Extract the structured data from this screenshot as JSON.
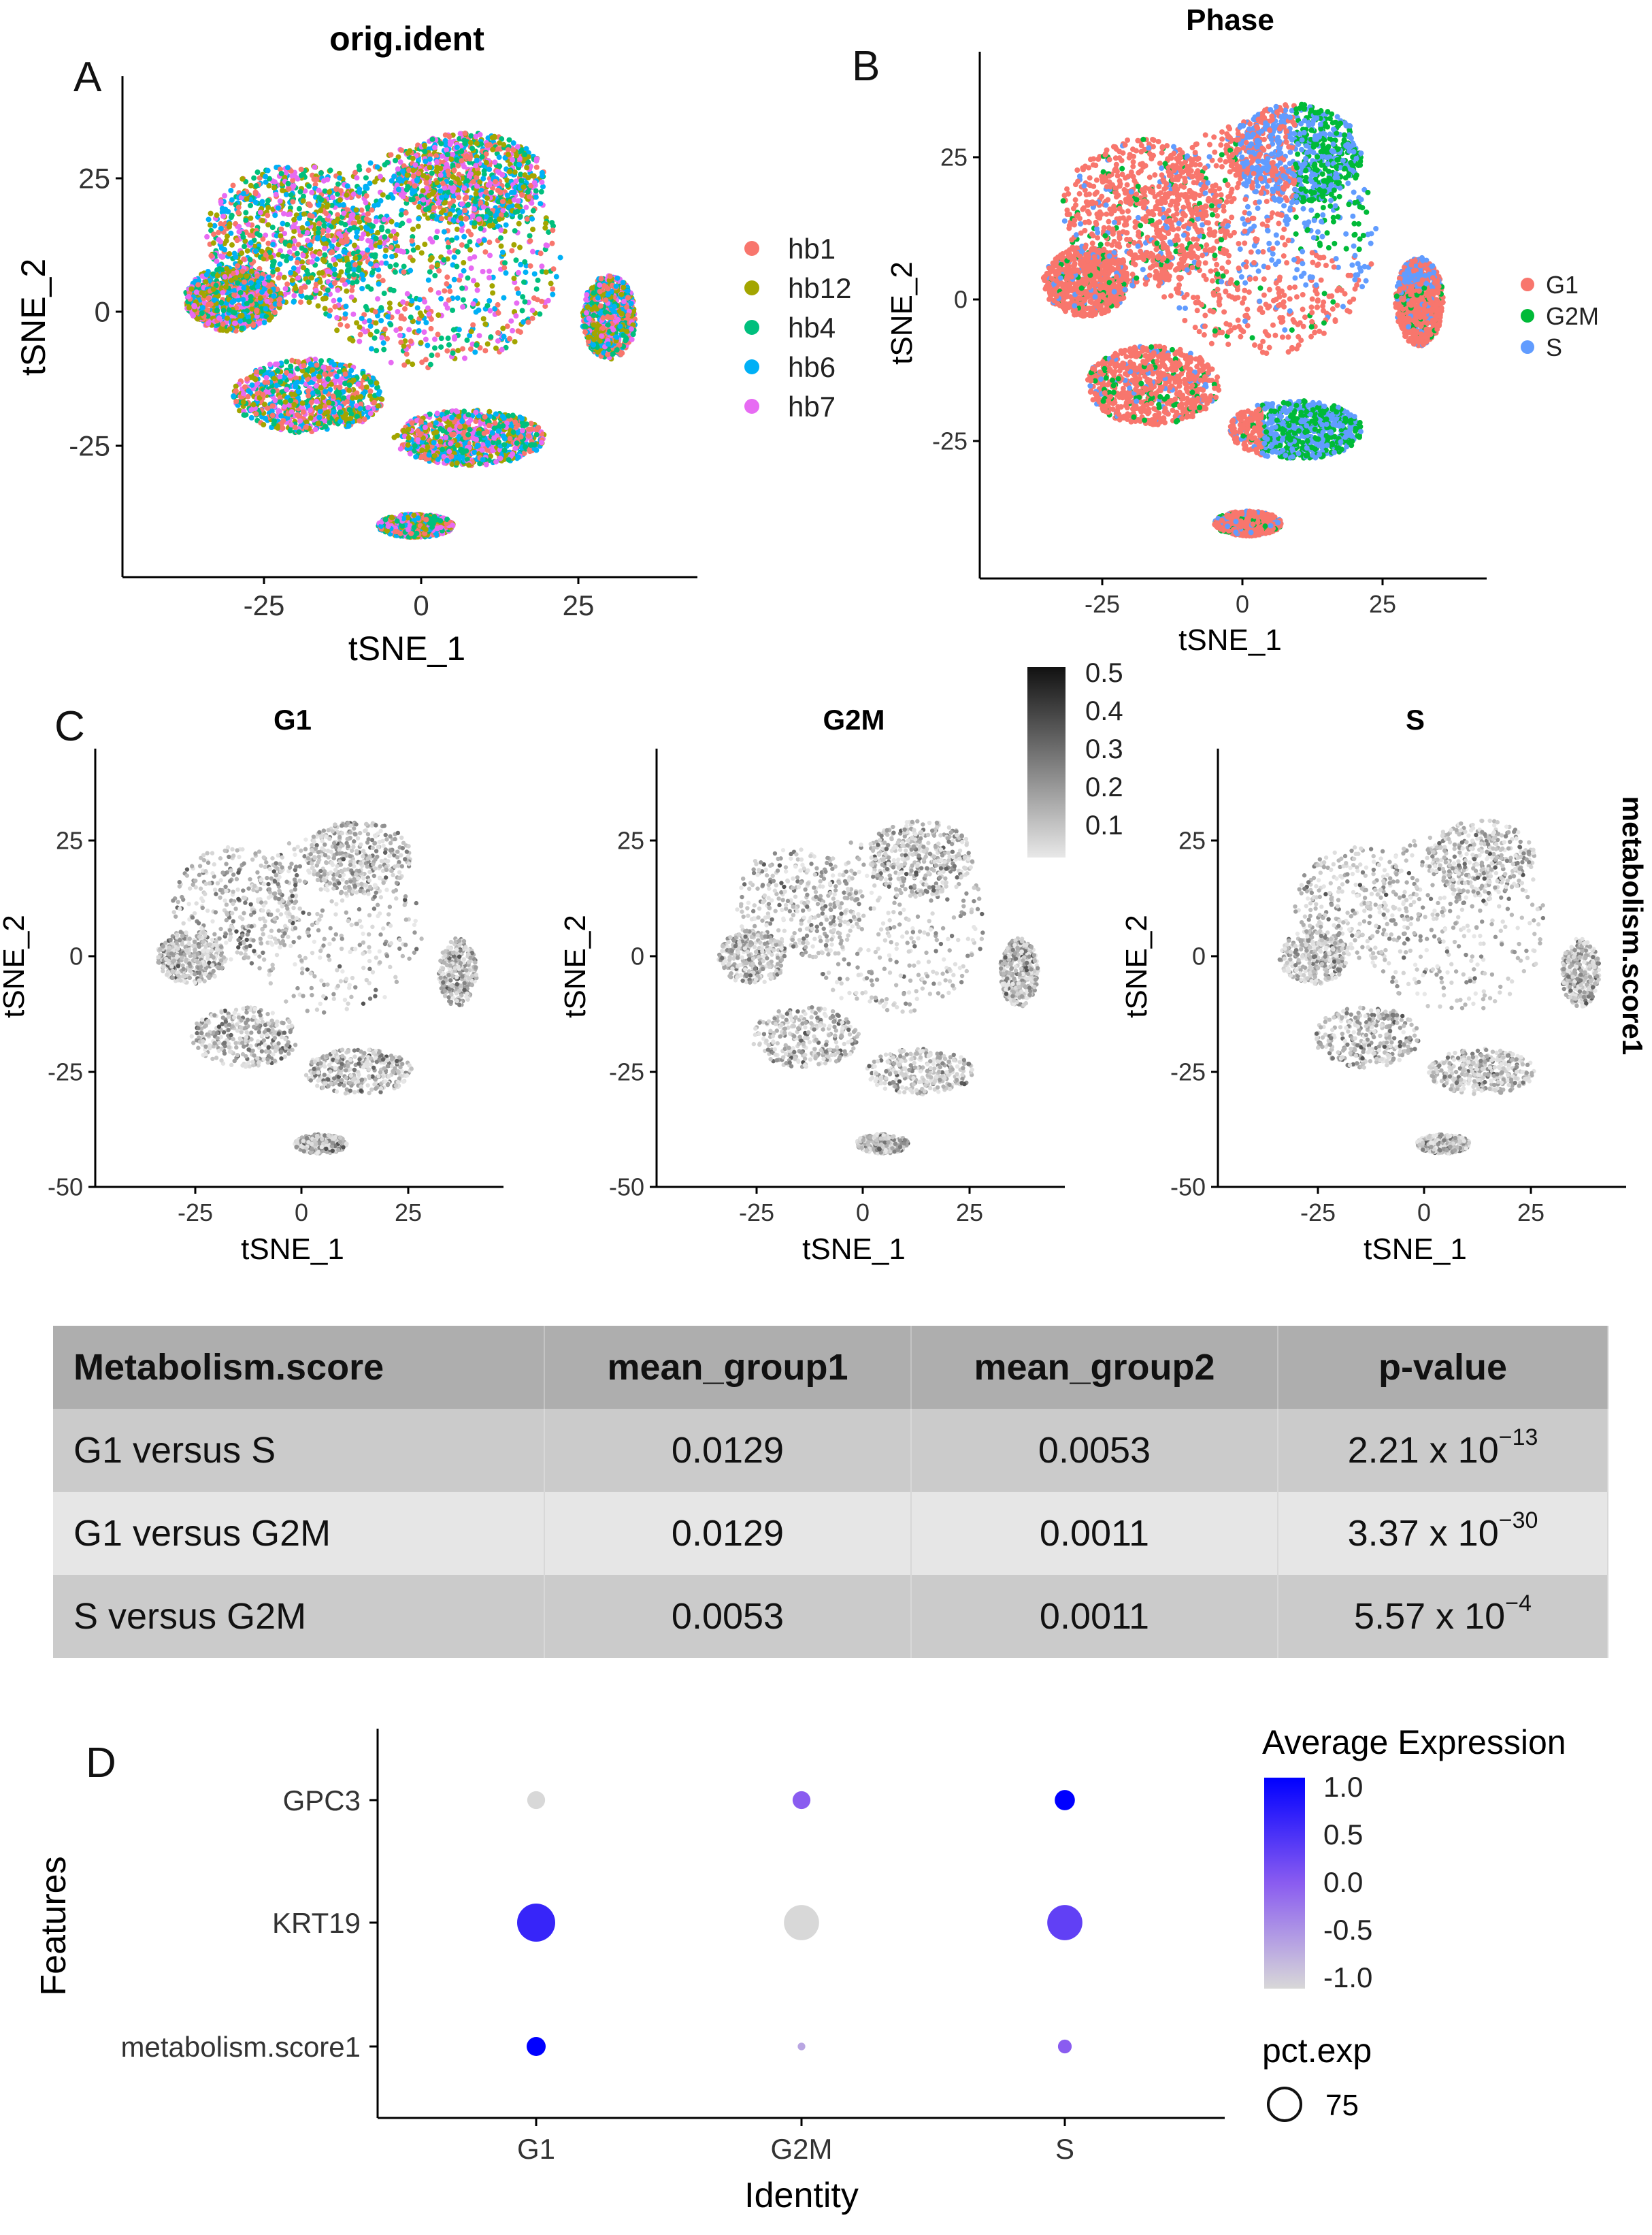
{
  "panels": {
    "a": "A",
    "b": "B",
    "c": "C",
    "d": "D"
  },
  "chart_data": [
    {
      "type": "scatter",
      "title": "orig.ident",
      "xlabel": "tSNE_1",
      "ylabel": "tSNE_2",
      "xticks": [
        "-25",
        "0",
        "25"
      ],
      "yticks": [
        "25",
        "0",
        "-25"
      ],
      "legend": [
        "hb1",
        "hb12",
        "hb4",
        "hb6",
        "hb7"
      ],
      "colors": [
        "#f8766d",
        "#a3a500",
        "#00bf7d",
        "#00b0f6",
        "#e76bf3"
      ]
    },
    {
      "type": "scatter",
      "title": "Phase",
      "xlabel": "tSNE_1",
      "ylabel": "tSNE_2",
      "xticks": [
        "-25",
        "0",
        "25"
      ],
      "yticks": [
        "25",
        "0",
        "-25"
      ],
      "legend": [
        "G1",
        "G2M",
        "S"
      ],
      "colors": [
        "#f8766d",
        "#00ba38",
        "#619cff"
      ]
    },
    {
      "type": "scatter",
      "panels": [
        "G1",
        "G2M",
        "S"
      ],
      "xlabel": "tSNE_1",
      "ylabel": "tSNE_2",
      "xticks": [
        "-25",
        "0",
        "25"
      ],
      "yticks": [
        "25",
        "0",
        "-25",
        "-50"
      ],
      "color_label": "metabolism.score1",
      "colorbar_ticks": [
        "0.5",
        "0.4",
        "0.3",
        "0.2",
        "0.1"
      ]
    },
    {
      "type": "table",
      "headers": [
        "Metabolism.score",
        "mean_group1",
        "mean_group2",
        "p-value"
      ],
      "rows": [
        {
          "comparison": "G1 versus S",
          "mean1": "0.0129",
          "mean2": "0.0053",
          "p_base": "2.21 x 10",
          "p_exp": "−13"
        },
        {
          "comparison": "G1 versus G2M",
          "mean1": "0.0129",
          "mean2": "0.0011",
          "p_base": "3.37 x 10",
          "p_exp": "−30"
        },
        {
          "comparison": "S versus G2M",
          "mean1": "0.0053",
          "mean2": "0.0011",
          "p_base": "5.57 x 10",
          "p_exp": "−4"
        }
      ]
    },
    {
      "type": "scatter",
      "subtype": "dotplot",
      "xlabel": "Identity",
      "ylabel": "Features",
      "x": [
        "G1",
        "G2M",
        "S"
      ],
      "y": [
        "GPC3",
        "KRT19",
        "metabolism.score1"
      ],
      "avg_expression": [
        [
          -1.0,
          0.0,
          1.0
        ],
        [
          0.6,
          -1.0,
          0.3
        ],
        [
          1.0,
          -0.6,
          0.0
        ]
      ],
      "pct_exp": [
        [
          22,
          22,
          28
        ],
        [
          100,
          85,
          85
        ],
        [
          25,
          4,
          13
        ]
      ],
      "color_legend_title": "Average Expression",
      "color_ticks": [
        "1.0",
        "0.5",
        "0.0",
        "-0.5",
        "-1.0"
      ],
      "size_legend_title": "pct.exp",
      "size_ticks": [
        "75"
      ]
    }
  ]
}
